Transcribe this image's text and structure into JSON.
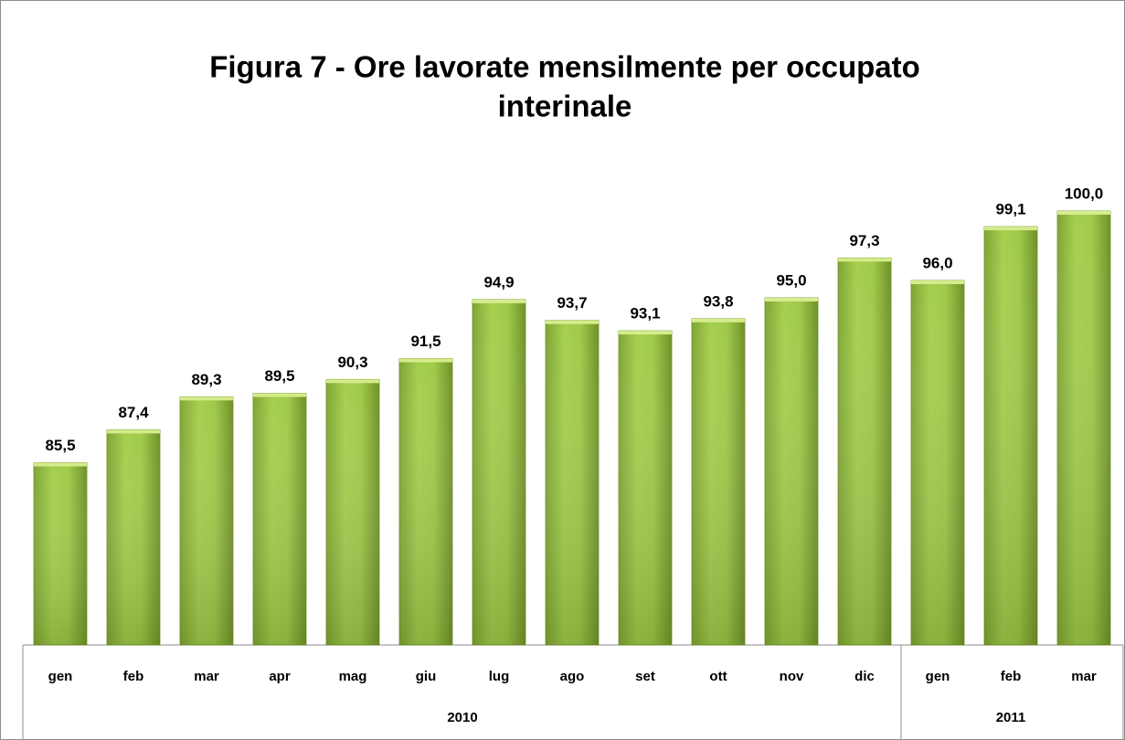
{
  "chart_data": {
    "type": "bar",
    "title": [
      "Figura 7 - Ore lavorate mensilmente per occupato",
      "interinale"
    ],
    "category_groups": [
      {
        "label": "2010",
        "categories": [
          "gen",
          "feb",
          "mar",
          "apr",
          "mag",
          "giu",
          "lug",
          "ago",
          "set",
          "ott",
          "nov",
          "dic"
        ]
      },
      {
        "label": "2011",
        "categories": [
          "gen",
          "feb",
          "mar"
        ]
      }
    ],
    "values": [
      85.5,
      87.4,
      89.3,
      89.5,
      90.3,
      91.5,
      94.9,
      93.7,
      93.1,
      93.8,
      95.0,
      97.3,
      96.0,
      99.1,
      100.0
    ],
    "value_labels": [
      "85,5",
      "87,4",
      "89,3",
      "89,5",
      "90,3",
      "91,5",
      "94,9",
      "93,7",
      "93,1",
      "93,8",
      "95,0",
      "97,3",
      "96,0",
      "99,1",
      "100,0"
    ],
    "color": "#9bc441",
    "ylim": [
      75,
      100
    ]
  }
}
